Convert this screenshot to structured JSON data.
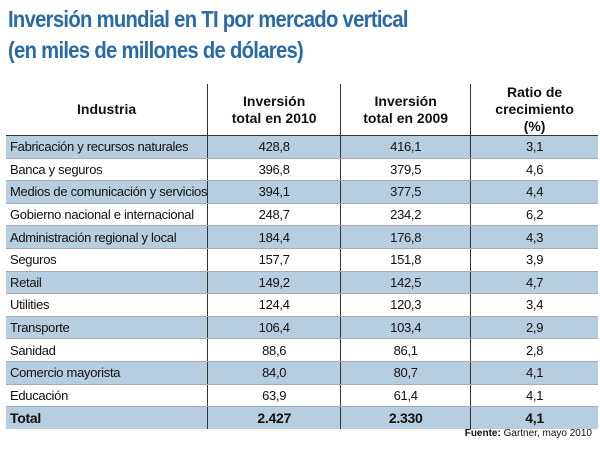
{
  "title": [
    "Inversión mundial en TI por mercado vertical",
    "(en miles de millones de dólares)"
  ],
  "headers": [
    "Industria",
    "Inversión total en 2010",
    "Inversión total en 2009",
    "Ratio de crecimiento (%)"
  ],
  "rows": [
    [
      "Fabricación y recursos naturales",
      "428,8",
      "416,1",
      "3,1"
    ],
    [
      "Banca y seguros",
      "396,8",
      "379,5",
      "4,6"
    ],
    [
      "Medios de comunicación y servicios",
      "394,1",
      "377,5",
      "4,4"
    ],
    [
      "Gobierno nacional e internacional",
      "248,7",
      "234,2",
      "6,2"
    ],
    [
      "Administración regional y local",
      "184,4",
      "176,8",
      "4,3"
    ],
    [
      "Seguros",
      "157,7",
      "151,8",
      "3,9"
    ],
    [
      "Retail",
      "149,2",
      "142,5",
      "4,7"
    ],
    [
      "Utilities",
      "124,4",
      "120,3",
      "3,4"
    ],
    [
      "Transporte",
      "106,4",
      "103,4",
      "2,9"
    ],
    [
      "Sanidad",
      "88,6",
      "86,1",
      "2,8"
    ],
    [
      "Comercio mayorista",
      "84,0",
      "80,7",
      "4,1"
    ],
    [
      "Educación",
      "63,9",
      "61,4",
      "4,1"
    ]
  ],
  "total": [
    "Total",
    "2.427",
    "2.330",
    "4,1"
  ],
  "source": {
    "label": "Fuente:",
    "text": " Gartner, mayo 2010"
  }
}
